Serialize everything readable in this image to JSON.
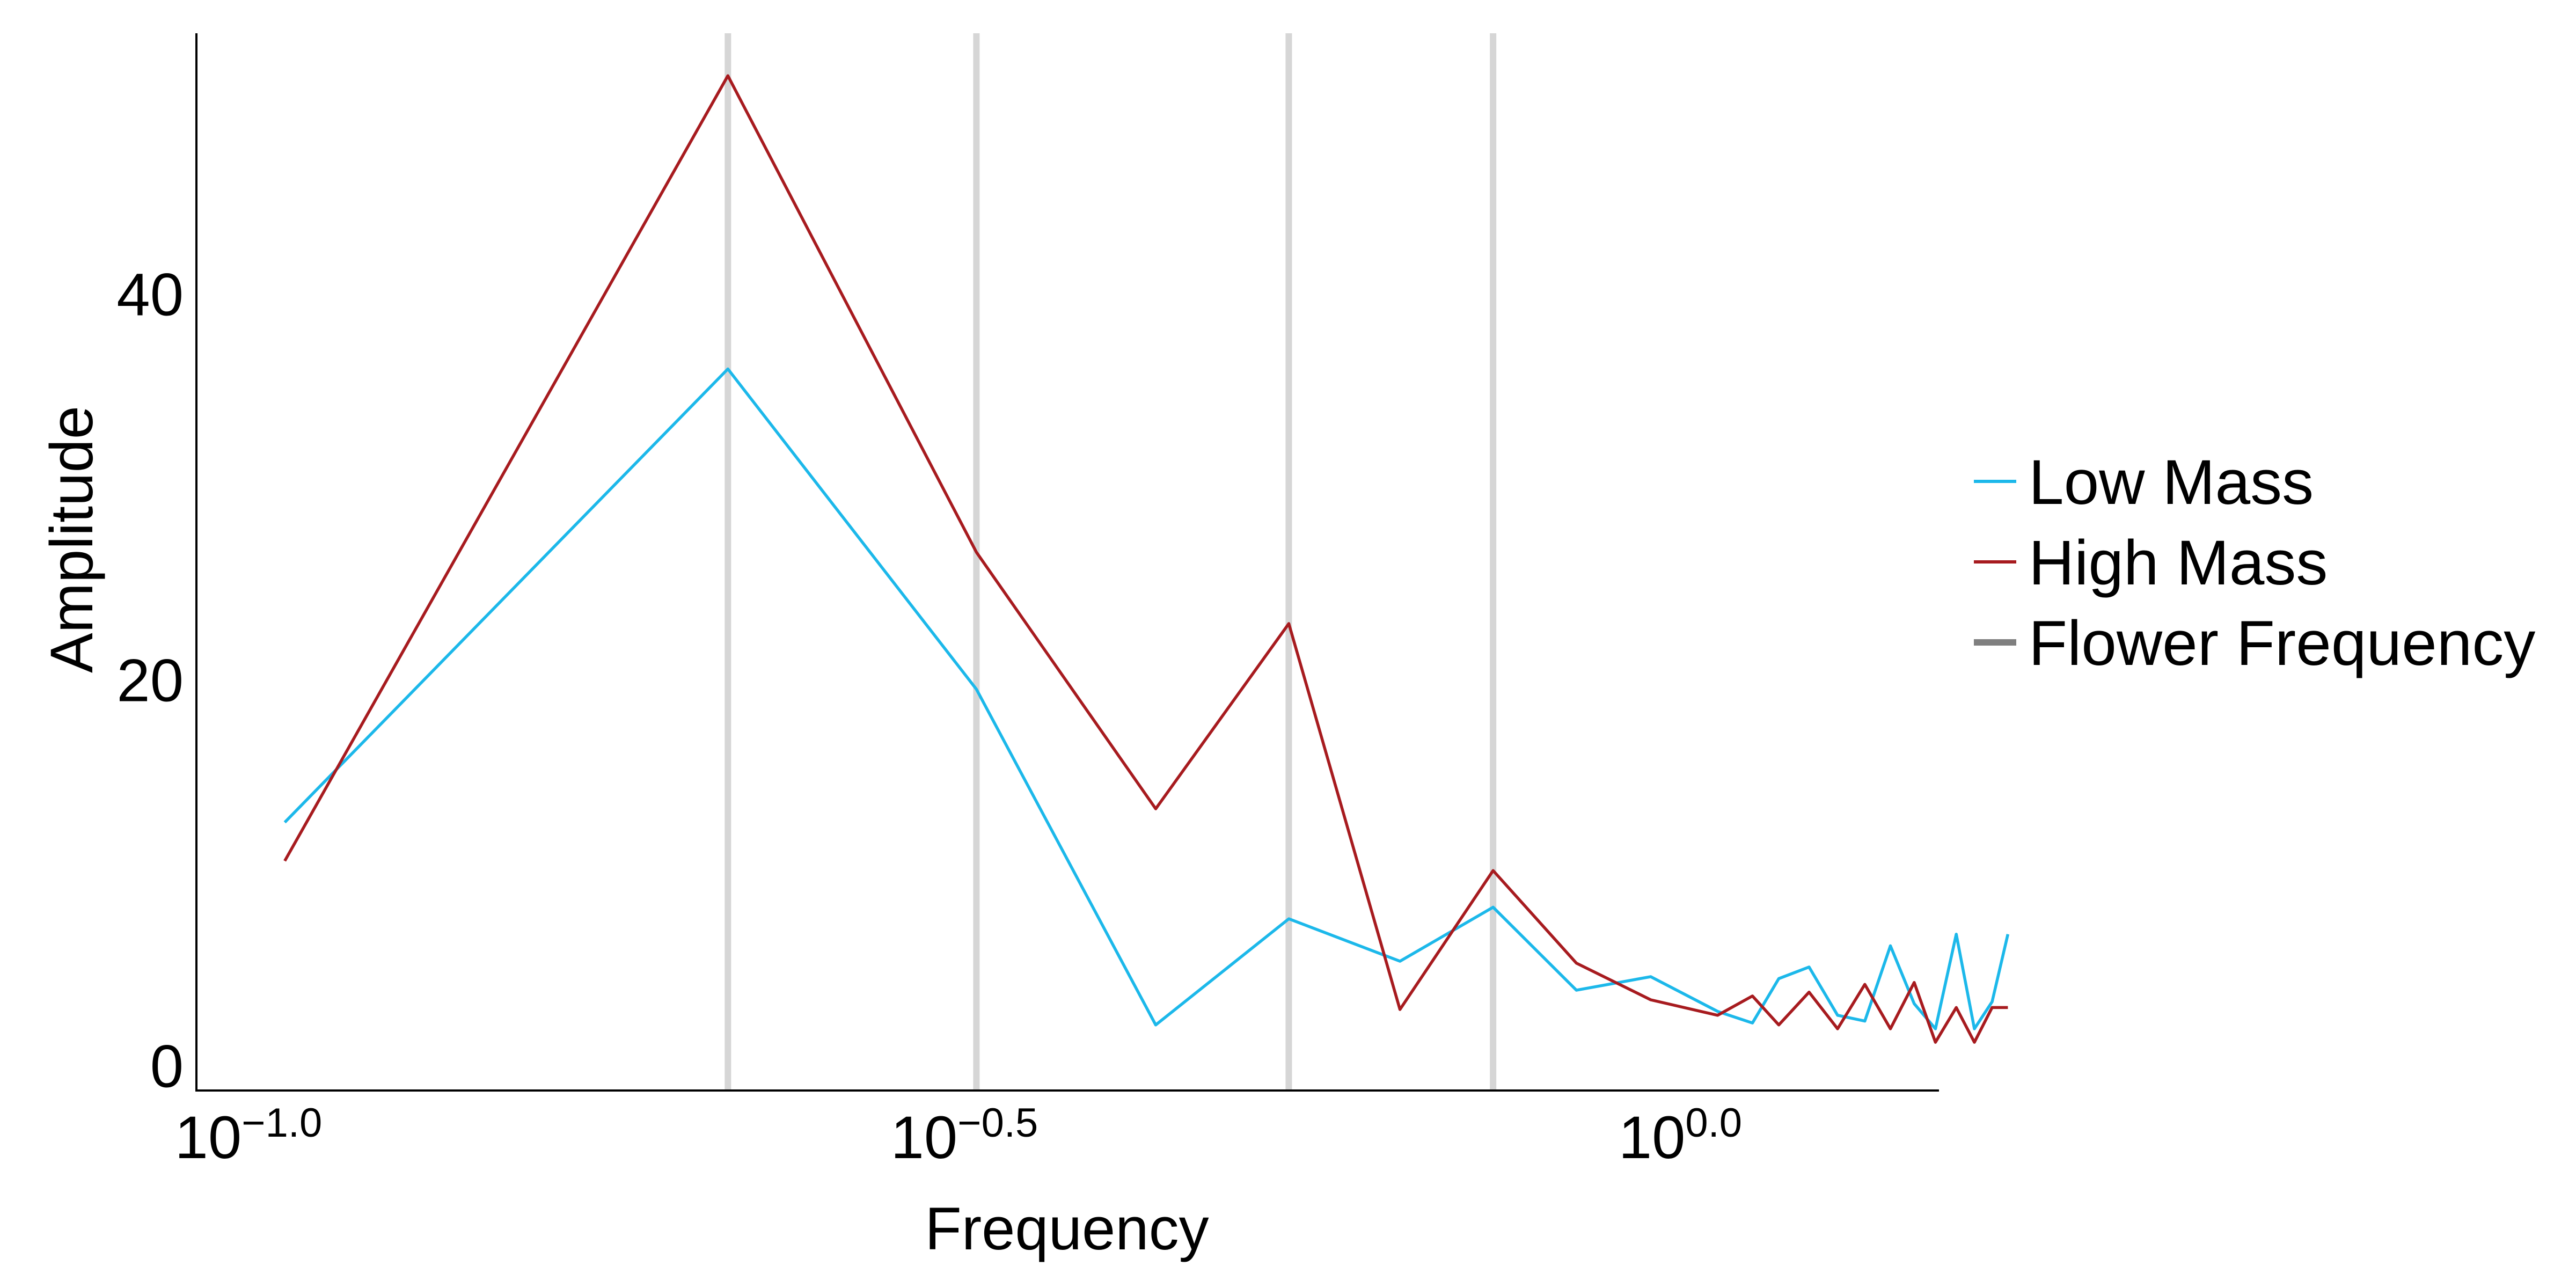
{
  "chart_data": {
    "type": "line",
    "xlabel": "Frequency",
    "ylabel": "Amplitude",
    "xscale": "log10",
    "xlim": [
      0.0904,
      1.49
    ],
    "ylim": [
      -1.3,
      53.5
    ],
    "xticks": [
      {
        "value": 0.1,
        "base": "10",
        "exp": "−1.0"
      },
      {
        "value": 0.31623,
        "base": "10",
        "exp": "−0.5"
      },
      {
        "value": 1.0,
        "base": "10",
        "exp": "0.0"
      }
    ],
    "yticks": [
      {
        "value": 0,
        "label": "0"
      },
      {
        "value": 20,
        "label": "20"
      },
      {
        "value": 40,
        "label": "40"
      }
    ],
    "vlines": [
      0.2125,
      0.3169,
      0.5237,
      0.7274
    ],
    "grid": false,
    "legend_position": "right",
    "series": [
      {
        "name": "Low Mass",
        "color": "#1cb8ea",
        "x": [
          0.1042,
          0.2125,
          0.3169,
          0.4228,
          0.5237,
          0.6262,
          0.7274,
          0.8317,
          0.9373,
          1.0437,
          1.1038,
          1.1516,
          1.209,
          1.2659,
          1.3225,
          1.378,
          1.4317,
          1.4816,
          1.532,
          1.5774,
          1.6229,
          1.6646
        ],
        "y": [
          12.6,
          36.1,
          19.5,
          2.1,
          7.6,
          5.4,
          8.2,
          3.9,
          4.6,
          2.8,
          2.2,
          4.5,
          5.1,
          2.6,
          2.3,
          6.2,
          3.2,
          1.9,
          6.8,
          1.9,
          3.3,
          6.8
        ]
      },
      {
        "name": "High Mass",
        "color": "#a71b1f",
        "x": [
          0.1042,
          0.2125,
          0.3169,
          0.4228,
          0.5237,
          0.6262,
          0.7274,
          0.8317,
          0.9373,
          1.0437,
          1.1038,
          1.1516,
          1.209,
          1.2659,
          1.3225,
          1.378,
          1.4317,
          1.4816,
          1.532,
          1.5774,
          1.6229,
          1.6646
        ],
        "y": [
          10.6,
          51.3,
          26.6,
          13.3,
          22.9,
          2.9,
          10.1,
          5.3,
          3.4,
          2.6,
          3.6,
          2.1,
          3.8,
          1.9,
          4.2,
          1.9,
          4.3,
          1.2,
          3.0,
          1.2,
          3.0,
          3.0
        ]
      },
      {
        "name": "Flower Frequency",
        "color": "#7f7f7f"
      }
    ]
  }
}
